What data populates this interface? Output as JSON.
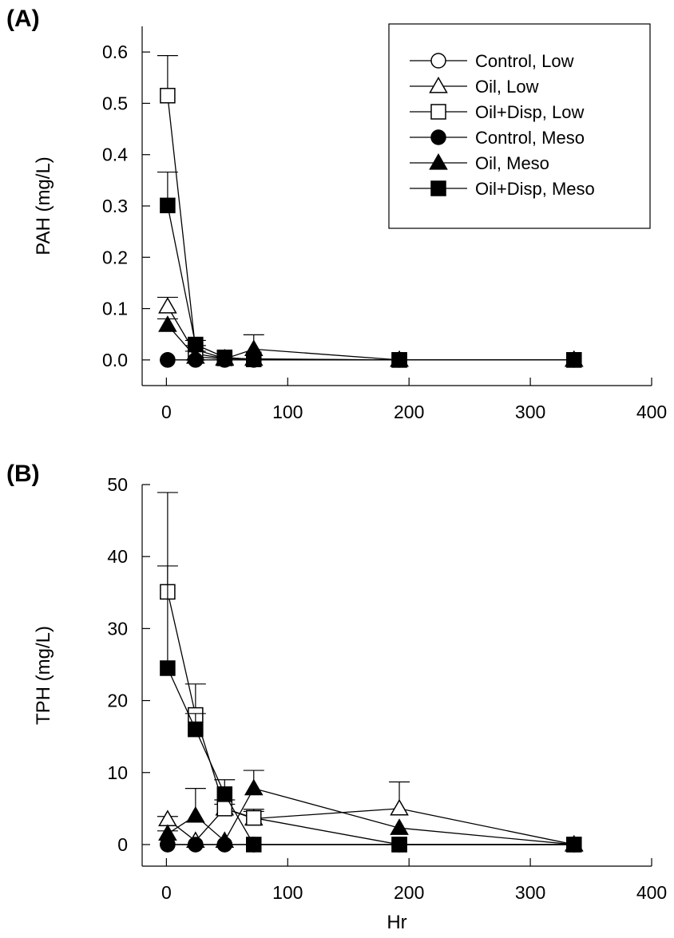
{
  "chart_data": [
    {
      "type": "line",
      "panel_label": "(A)",
      "xlabel": "",
      "ylabel": "PAH (mg/L)",
      "xlim": [
        -20,
        400
      ],
      "ylim": [
        -0.05,
        0.65
      ],
      "xticks": [
        0,
        100,
        200,
        300,
        400
      ],
      "yticks": [
        0.0,
        0.1,
        0.2,
        0.3,
        0.4,
        0.5,
        0.6
      ],
      "xtick_labels": [
        "0",
        "100",
        "200",
        "300",
        "400"
      ],
      "ytick_labels": [
        "0.0",
        "0.1",
        "0.2",
        "0.3",
        "0.4",
        "0.5",
        "0.6"
      ],
      "grid": false,
      "legend_position": "top-right",
      "series": [
        {
          "name": "Control, Low",
          "marker": "circle",
          "filled": false,
          "x": [
            1,
            24,
            48,
            72,
            192,
            336
          ],
          "y": [
            0,
            0,
            0,
            0,
            0,
            0
          ],
          "err": [
            0,
            0,
            0,
            0,
            0,
            0
          ]
        },
        {
          "name": "Oil, Low",
          "marker": "triangle",
          "filled": false,
          "x": [
            1,
            24,
            48,
            72,
            192,
            336
          ],
          "y": [
            0.104,
            0.012,
            0.003,
            0.002,
            0,
            0
          ],
          "err": [
            0.018,
            0.005,
            0,
            0,
            0,
            0
          ]
        },
        {
          "name": "Oil+Disp, Low",
          "marker": "square",
          "filled": false,
          "x": [
            1,
            24,
            48,
            72,
            192,
            336
          ],
          "y": [
            0.515,
            0.02,
            0.003,
            0.001,
            0,
            0
          ],
          "err": [
            0.078,
            0.008,
            0,
            0,
            0,
            0
          ]
        },
        {
          "name": "Control, Meso",
          "marker": "circle",
          "filled": true,
          "x": [
            1,
            24,
            48,
            72,
            192,
            336
          ],
          "y": [
            0,
            0,
            0,
            0,
            0,
            0
          ],
          "err": [
            0,
            0,
            0,
            0,
            0,
            0
          ]
        },
        {
          "name": "Oil, Meso",
          "marker": "triangle",
          "filled": true,
          "x": [
            1,
            24,
            48,
            72,
            192,
            336
          ],
          "y": [
            0.068,
            0.006,
            0.002,
            0.021,
            0,
            0
          ],
          "err": [
            0.012,
            0,
            0,
            0.028,
            0,
            0
          ]
        },
        {
          "name": "Oil+Disp, Meso",
          "marker": "square",
          "filled": true,
          "x": [
            1,
            24,
            48,
            72,
            192,
            336
          ],
          "y": [
            0.301,
            0.03,
            0.005,
            0.001,
            0,
            0
          ],
          "err": [
            0.065,
            0.008,
            0,
            0,
            0,
            0
          ]
        }
      ]
    },
    {
      "type": "line",
      "panel_label": "(B)",
      "xlabel": "Hr",
      "ylabel": "TPH (mg/L)",
      "xlim": [
        -20,
        400
      ],
      "ylim": [
        -3,
        50
      ],
      "xticks": [
        0,
        100,
        200,
        300,
        400
      ],
      "yticks": [
        0,
        10,
        20,
        30,
        40,
        50
      ],
      "xtick_labels": [
        "0",
        "100",
        "200",
        "300",
        "400"
      ],
      "ytick_labels": [
        "0",
        "10",
        "20",
        "30",
        "40",
        "50"
      ],
      "grid": false,
      "legend_position": "none",
      "series": [
        {
          "name": "Control, Low",
          "marker": "circle",
          "filled": false,
          "x": [
            1,
            24,
            48,
            72,
            192,
            336
          ],
          "y": [
            0,
            0,
            0,
            0,
            0,
            0
          ],
          "err": [
            0,
            0,
            0,
            0,
            0,
            0
          ]
        },
        {
          "name": "Oil, Low",
          "marker": "triangle",
          "filled": false,
          "x": [
            1,
            24,
            48,
            72,
            192,
            336
          ],
          "y": [
            3.5,
            0.5,
            5.0,
            3.6,
            5.0,
            0
          ],
          "err": [
            0.4,
            0,
            0.6,
            1.0,
            3.7,
            0
          ]
        },
        {
          "name": "Oil+Disp, Low",
          "marker": "square",
          "filled": false,
          "x": [
            1,
            24,
            48,
            72,
            192,
            336
          ],
          "y": [
            35.1,
            18.0,
            5.0,
            3.7,
            0,
            0
          ],
          "err": [
            13.8,
            4.3,
            1.2,
            1.2,
            0,
            0
          ]
        },
        {
          "name": "Control, Meso",
          "marker": "circle",
          "filled": true,
          "x": [
            1,
            24,
            48,
            72,
            192,
            336
          ],
          "y": [
            0,
            0,
            0,
            0,
            0,
            0
          ],
          "err": [
            0,
            0,
            0,
            0,
            0,
            0
          ]
        },
        {
          "name": "Oil, Meso",
          "marker": "triangle",
          "filled": true,
          "x": [
            1,
            24,
            48,
            72,
            192,
            336
          ],
          "y": [
            1.5,
            4.0,
            0.5,
            7.8,
            2.3,
            0
          ],
          "err": [
            0.4,
            3.8,
            0,
            2.5,
            0,
            0
          ]
        },
        {
          "name": "Oil+Disp, Meso",
          "marker": "square",
          "filled": true,
          "x": [
            1,
            24,
            48,
            72,
            192,
            336
          ],
          "y": [
            24.5,
            16.0,
            7.0,
            0,
            0,
            0
          ],
          "err": [
            14.2,
            2.2,
            2.0,
            0,
            0,
            0
          ]
        }
      ]
    }
  ]
}
